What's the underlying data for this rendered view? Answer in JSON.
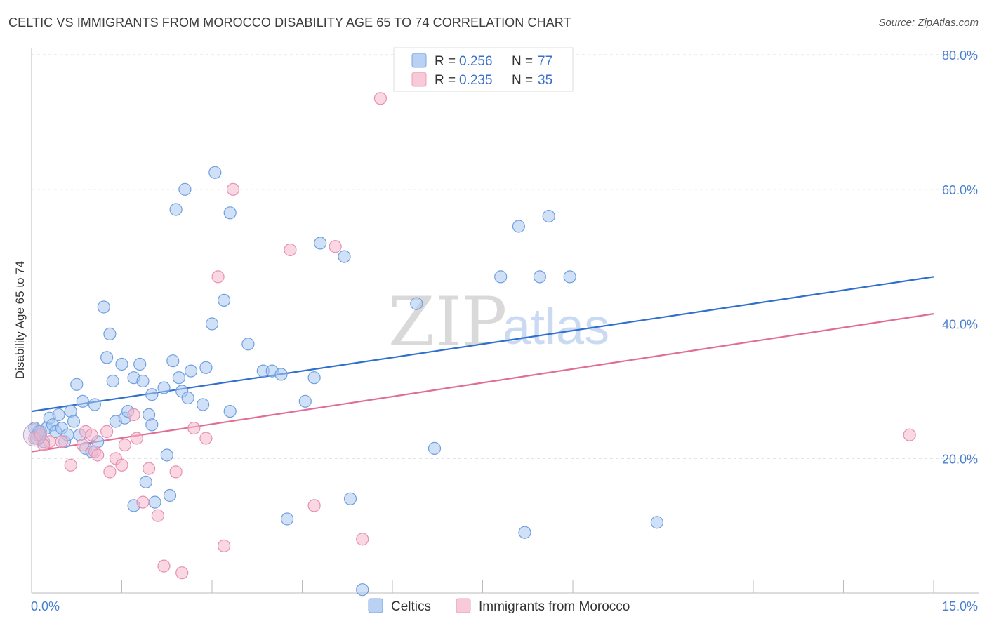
{
  "header": {
    "title": "CELTIC VS IMMIGRANTS FROM MOROCCO DISABILITY AGE 65 TO 74 CORRELATION CHART",
    "source": "Source: ZipAtlas.com"
  },
  "watermark": {
    "zip": "ZIP",
    "atlas": "atlas"
  },
  "legend_top": {
    "rows": [
      {
        "r_label": "R = ",
        "r_value": "0.256",
        "n_label": "N = ",
        "n_value": "77",
        "color": "#a9c8f0"
      },
      {
        "r_label": "R = ",
        "r_value": "0.235",
        "n_label": "N = ",
        "n_value": "35",
        "color": "#f5b8cc"
      }
    ]
  },
  "legend_bottom": {
    "items": [
      {
        "label": "Celtics",
        "color": "#a9c8f0"
      },
      {
        "label": "Immigrants from Morocco",
        "color": "#f5b8cc"
      }
    ]
  },
  "chart_data": {
    "type": "scatter",
    "title": "CELTIC VS IMMIGRANTS FROM MOROCCO DISABILITY AGE 65 TO 74 CORRELATION CHART",
    "xlabel": "",
    "ylabel": "Disability Age 65 to 74",
    "xlim": [
      0,
      15
    ],
    "ylim": [
      0,
      80
    ],
    "x_tick_labels": [
      "0.0%",
      "15.0%"
    ],
    "y_tick_labels": [
      "20.0%",
      "40.0%",
      "60.0%",
      "80.0%"
    ],
    "y_ticks": [
      20,
      40,
      60,
      80
    ],
    "grid": true,
    "legend_position": "top-center",
    "series": [
      {
        "name": "Celtics",
        "color": "#6f9fe0",
        "fill": "#a9c8f0",
        "trend": {
          "x": [
            0,
            15
          ],
          "y": [
            27.0,
            47.0
          ],
          "color": "#2f6fce"
        },
        "points": [
          [
            0.05,
            24.5
          ],
          [
            0.1,
            23.5
          ],
          [
            0.15,
            24.0
          ],
          [
            0.2,
            22.5
          ],
          [
            0.25,
            24.5
          ],
          [
            0.3,
            26.0
          ],
          [
            0.35,
            25.0
          ],
          [
            0.4,
            24.0
          ],
          [
            0.45,
            26.5
          ],
          [
            0.5,
            24.5
          ],
          [
            0.55,
            22.5
          ],
          [
            0.6,
            23.5
          ],
          [
            0.65,
            27.0
          ],
          [
            0.7,
            25.5
          ],
          [
            0.75,
            31.0
          ],
          [
            0.8,
            23.5
          ],
          [
            0.85,
            28.5
          ],
          [
            0.9,
            21.5
          ],
          [
            1.0,
            21.0
          ],
          [
            1.05,
            28.0
          ],
          [
            1.1,
            22.5
          ],
          [
            1.2,
            42.5
          ],
          [
            1.25,
            35.0
          ],
          [
            1.3,
            38.5
          ],
          [
            1.35,
            31.5
          ],
          [
            1.4,
            25.5
          ],
          [
            1.5,
            34.0
          ],
          [
            1.55,
            26.0
          ],
          [
            1.6,
            27.0
          ],
          [
            1.7,
            13.0
          ],
          [
            1.7,
            32.0
          ],
          [
            1.8,
            34.0
          ],
          [
            1.85,
            31.5
          ],
          [
            1.9,
            16.5
          ],
          [
            1.95,
            26.5
          ],
          [
            2.0,
            29.5
          ],
          [
            2.0,
            25.0
          ],
          [
            2.05,
            13.5
          ],
          [
            2.2,
            30.5
          ],
          [
            2.25,
            20.5
          ],
          [
            2.3,
            14.5
          ],
          [
            2.35,
            34.5
          ],
          [
            2.4,
            57.0
          ],
          [
            2.45,
            32.0
          ],
          [
            2.5,
            30.0
          ],
          [
            2.55,
            60.0
          ],
          [
            2.6,
            29.0
          ],
          [
            2.65,
            33.0
          ],
          [
            2.85,
            28.0
          ],
          [
            2.9,
            33.5
          ],
          [
            3.0,
            40.0
          ],
          [
            3.05,
            62.5
          ],
          [
            3.2,
            43.5
          ],
          [
            3.3,
            56.5
          ],
          [
            3.3,
            27.0
          ],
          [
            3.6,
            37.0
          ],
          [
            3.85,
            33.0
          ],
          [
            4.0,
            33.0
          ],
          [
            4.15,
            32.5
          ],
          [
            4.25,
            11.0
          ],
          [
            4.55,
            28.5
          ],
          [
            4.7,
            32.0
          ],
          [
            4.8,
            52.0
          ],
          [
            5.2,
            50.0
          ],
          [
            5.3,
            14.0
          ],
          [
            5.5,
            0.5
          ],
          [
            6.4,
            43.0
          ],
          [
            6.7,
            21.5
          ],
          [
            7.8,
            47.0
          ],
          [
            8.1,
            54.5
          ],
          [
            8.2,
            9.0
          ],
          [
            8.45,
            47.0
          ],
          [
            8.6,
            56.0
          ],
          [
            8.95,
            47.0
          ],
          [
            10.4,
            10.5
          ],
          [
            0.08,
            23.0
          ],
          [
            0.12,
            24.0
          ]
        ]
      },
      {
        "name": "Immigrants from Morocco",
        "color": "#e98fb0",
        "fill": "#f5b8cc",
        "trend": {
          "x": [
            0,
            15
          ],
          "y": [
            21.0,
            41.5
          ],
          "color": "#e06d98"
        },
        "points": [
          [
            0.05,
            23.0
          ],
          [
            0.15,
            23.5
          ],
          [
            0.3,
            22.5
          ],
          [
            0.5,
            22.5
          ],
          [
            0.65,
            19.0
          ],
          [
            0.85,
            22.0
          ],
          [
            0.9,
            24.0
          ],
          [
            1.0,
            23.5
          ],
          [
            1.05,
            21.0
          ],
          [
            1.1,
            20.5
          ],
          [
            1.25,
            24.0
          ],
          [
            1.3,
            18.0
          ],
          [
            1.4,
            20.0
          ],
          [
            1.5,
            19.0
          ],
          [
            1.55,
            22.0
          ],
          [
            1.7,
            26.5
          ],
          [
            1.75,
            23.0
          ],
          [
            1.85,
            13.5
          ],
          [
            1.95,
            18.5
          ],
          [
            2.1,
            11.5
          ],
          [
            2.2,
            4.0
          ],
          [
            2.4,
            18.0
          ],
          [
            2.5,
            3.0
          ],
          [
            2.7,
            24.5
          ],
          [
            2.9,
            23.0
          ],
          [
            3.1,
            47.0
          ],
          [
            3.2,
            7.0
          ],
          [
            3.35,
            60.0
          ],
          [
            4.3,
            51.0
          ],
          [
            4.7,
            13.0
          ],
          [
            5.05,
            51.5
          ],
          [
            5.5,
            8.0
          ],
          [
            5.8,
            73.5
          ],
          [
            14.6,
            23.5
          ],
          [
            0.2,
            22.0
          ]
        ]
      }
    ]
  }
}
